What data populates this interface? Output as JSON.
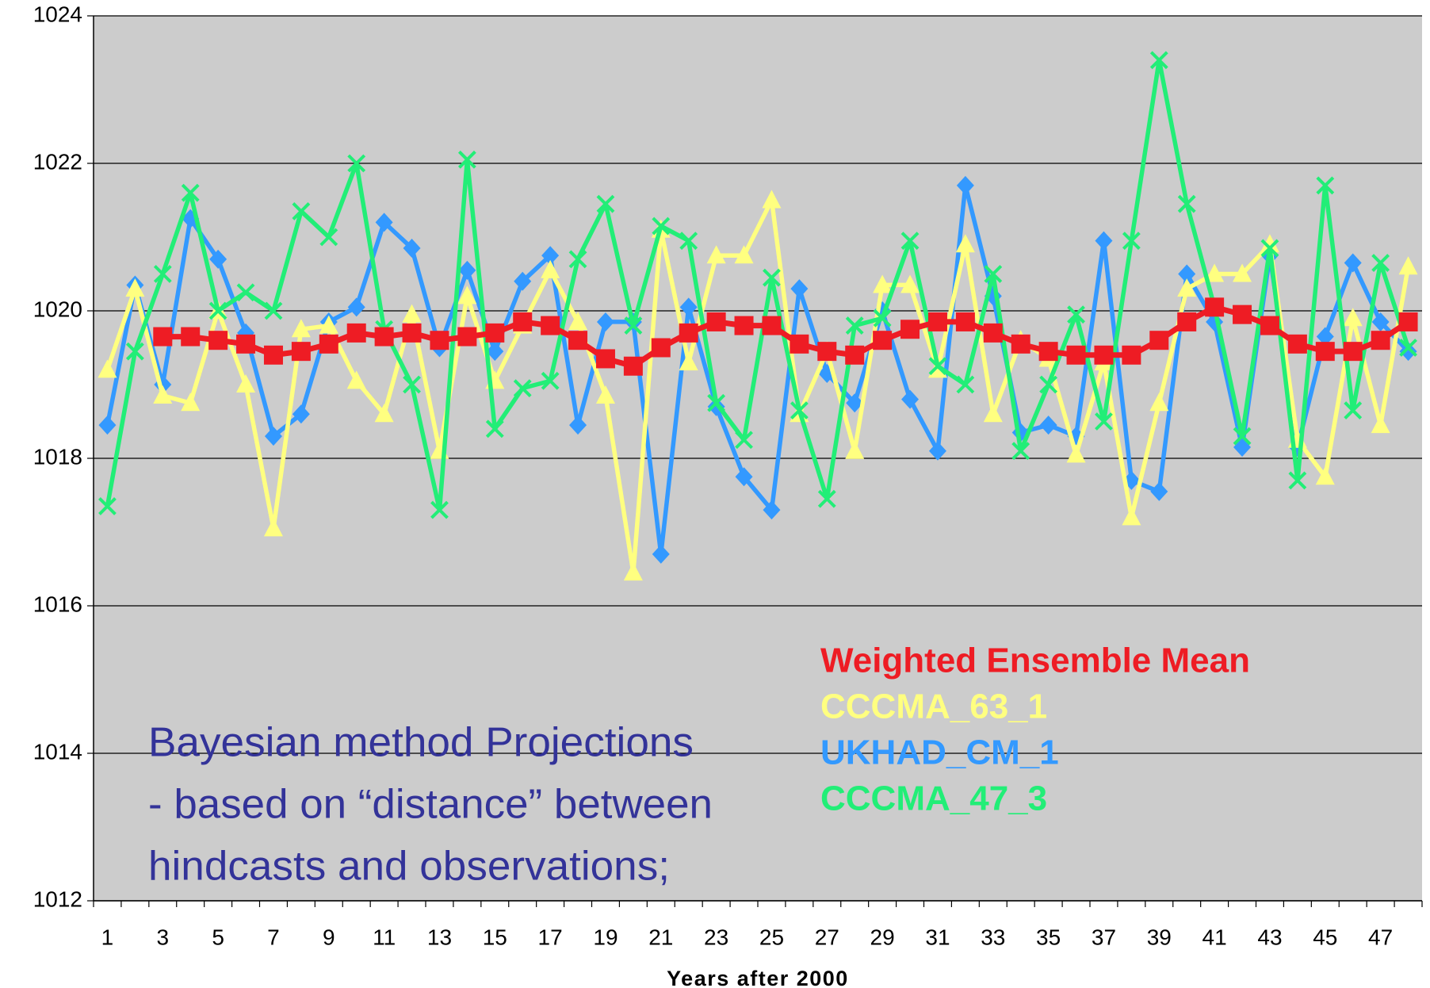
{
  "chart_data": {
    "type": "line",
    "x_label": "Years after 2000",
    "annotation": [
      "Bayesian method Projections",
      "- based on “distance” between",
      "hindcasts and observations;"
    ],
    "categories": [
      1,
      null,
      3,
      null,
      5,
      null,
      7,
      null,
      9,
      null,
      11,
      null,
      13,
      null,
      15,
      null,
      17,
      null,
      19,
      null,
      21,
      null,
      23,
      null,
      25,
      null,
      27,
      null,
      29,
      null,
      31,
      null,
      33,
      null,
      35,
      null,
      37,
      null,
      39,
      null,
      41,
      null,
      43,
      null,
      45,
      null,
      47,
      null
    ],
    "ylim": [
      1012,
      1024
    ],
    "yticks": [
      1012,
      1014,
      1016,
      1018,
      1020,
      1022,
      1024
    ],
    "grid": true,
    "background": "#cccccc",
    "series": [
      {
        "name": "Weighted Ensemble Mean",
        "color": "#ee1c24",
        "marker": "square",
        "values": [
          null,
          null,
          1019.65,
          1019.65,
          1019.6,
          1019.55,
          1019.4,
          1019.45,
          1019.55,
          1019.7,
          1019.65,
          1019.7,
          1019.6,
          1019.65,
          1019.7,
          1019.85,
          1019.8,
          1019.6,
          1019.35,
          1019.25,
          1019.5,
          1019.7,
          1019.85,
          1019.8,
          1019.8,
          1019.55,
          1019.45,
          1019.4,
          1019.6,
          1019.75,
          1019.85,
          1019.85,
          1019.7,
          1019.55,
          1019.45,
          1019.4,
          1019.4,
          1019.4,
          1019.6,
          1019.85,
          1020.05,
          1019.95,
          1019.8,
          1019.55,
          1019.45,
          1019.45,
          1019.6,
          1019.85
        ]
      },
      {
        "name": "CCCMA_63_1",
        "color": "#ffff80",
        "marker": "triangle",
        "values": [
          1019.2,
          1020.3,
          1018.85,
          1018.75,
          1020.0,
          1019.0,
          1017.05,
          1019.75,
          1019.8,
          1019.05,
          1018.6,
          1019.95,
          1018.1,
          1020.2,
          1019.05,
          1019.8,
          1020.55,
          1019.85,
          1018.85,
          1016.45,
          1021.1,
          1019.3,
          1020.75,
          1020.75,
          1021.5,
          1018.6,
          1019.45,
          1018.1,
          1020.35,
          1020.35,
          1019.2,
          1020.9,
          1018.6,
          1019.6,
          1019.35,
          1018.05,
          1019.3,
          1017.2,
          1018.75,
          1020.3,
          1020.5,
          1020.5,
          1020.9,
          1018.25,
          1017.75,
          1019.9,
          1018.45,
          1020.6
        ]
      },
      {
        "name": "UKHAD_CM_1",
        "color": "#3399ff",
        "marker": "diamond",
        "values": [
          1018.45,
          1020.35,
          1019.0,
          1021.25,
          1020.7,
          1019.7,
          1018.3,
          1018.6,
          1019.85,
          1020.05,
          1021.2,
          1020.85,
          1019.5,
          1020.55,
          1019.45,
          1020.4,
          1020.75,
          1018.45,
          1019.85,
          1019.85,
          1016.7,
          1020.05,
          1018.7,
          1017.75,
          1017.3,
          1020.3,
          1019.15,
          1018.75,
          1020.0,
          1018.8,
          1018.1,
          1021.7,
          1020.2,
          1018.35,
          1018.45,
          1018.3,
          1020.95,
          1017.7,
          1017.55,
          1020.5,
          1019.85,
          1018.15,
          1020.75,
          1018.15,
          1019.65,
          1020.65,
          1019.85,
          1019.45
        ]
      },
      {
        "name": "CCCMA_47_3",
        "color": "#22ee77",
        "marker": "x",
        "values": [
          1017.35,
          1019.45,
          1020.5,
          1021.6,
          1020.0,
          1020.25,
          1020.0,
          1021.35,
          1021.0,
          1022.0,
          1019.75,
          1019.0,
          1017.3,
          1022.05,
          1018.4,
          1018.95,
          1019.05,
          1020.7,
          1021.45,
          1019.8,
          1021.15,
          1020.95,
          1018.75,
          1018.25,
          1020.45,
          1018.65,
          1017.45,
          1019.8,
          1019.9,
          1020.95,
          1019.25,
          1019.0,
          1020.5,
          1018.1,
          1019.0,
          1019.95,
          1018.5,
          1020.95,
          1023.4,
          1021.45,
          1020.05,
          1018.3,
          1020.85,
          1017.7,
          1021.7,
          1018.65,
          1020.65,
          1019.5
        ]
      }
    ]
  }
}
